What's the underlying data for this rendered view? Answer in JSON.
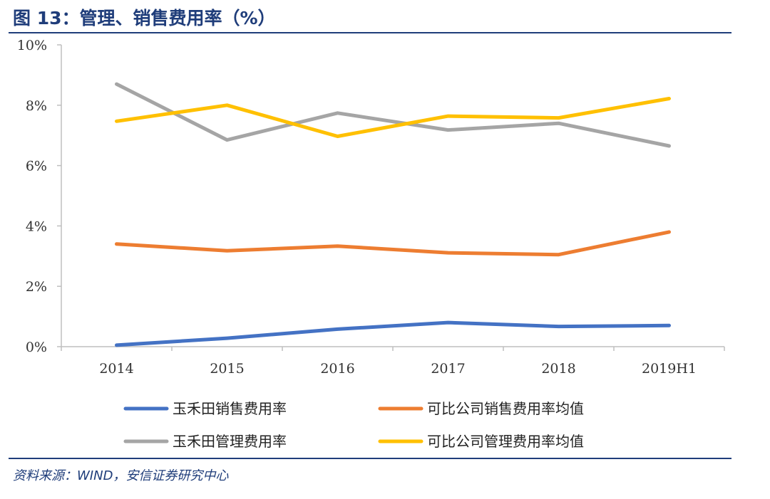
{
  "header": {
    "title": "图 13：管理、销售费用率（%）"
  },
  "footer": {
    "source": "资料来源：WIND，安信证券研究中心"
  },
  "colors": {
    "title": "#1f3d7a",
    "axis": "#bfbfbf"
  },
  "chart_data": {
    "type": "line",
    "categories": [
      "2014",
      "2015",
      "2016",
      "2017",
      "2018",
      "2019H1"
    ],
    "ylim": [
      0,
      10
    ],
    "yticks": [
      "0%",
      "2%",
      "4%",
      "6%",
      "8%",
      "10%"
    ],
    "grid": false,
    "legend_position": "bottom",
    "series": [
      {
        "name": "玉禾田销售费用率",
        "color": "#4472c4",
        "values": [
          0.05,
          0.28,
          0.58,
          0.8,
          0.67,
          0.7
        ]
      },
      {
        "name": "可比公司销售费用率均值",
        "color": "#ed7d31",
        "values": [
          3.4,
          3.18,
          3.33,
          3.11,
          3.05,
          3.8
        ]
      },
      {
        "name": "玉禾田管理费用率",
        "color": "#a5a5a5",
        "values": [
          8.7,
          6.85,
          7.74,
          7.18,
          7.4,
          6.65
        ]
      },
      {
        "name": "可比公司管理费用率均值",
        "color": "#ffc000",
        "values": [
          7.47,
          8.0,
          6.97,
          7.64,
          7.58,
          8.22
        ]
      }
    ]
  }
}
